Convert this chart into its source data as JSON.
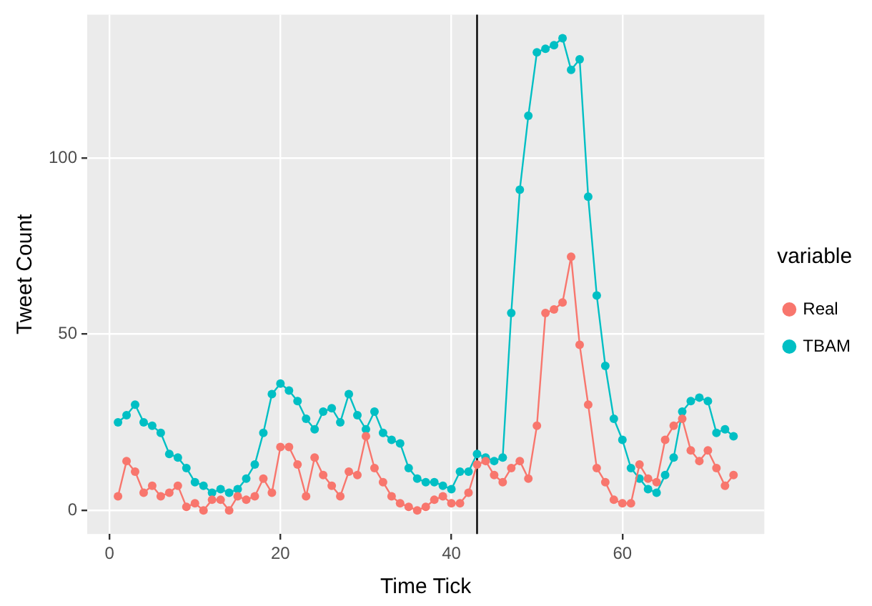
{
  "chart_data": {
    "type": "line",
    "xlabel": "Time Tick",
    "ylabel": "Tweet Count",
    "legend_title": "variable",
    "x": [
      1,
      2,
      3,
      4,
      5,
      6,
      7,
      8,
      9,
      10,
      11,
      12,
      13,
      14,
      15,
      16,
      17,
      18,
      19,
      20,
      21,
      22,
      23,
      24,
      25,
      26,
      27,
      28,
      29,
      30,
      31,
      32,
      33,
      34,
      35,
      36,
      37,
      38,
      39,
      40,
      41,
      42,
      43,
      44,
      45,
      46,
      47,
      48,
      49,
      50,
      51,
      52,
      53,
      54,
      55,
      56,
      57,
      58,
      59,
      60,
      61,
      62,
      63,
      64,
      65,
      66,
      67,
      68,
      69,
      70,
      71,
      72,
      73
    ],
    "series": [
      {
        "name": "Real",
        "color": "#f8766d",
        "values": [
          4,
          14,
          11,
          5,
          7,
          4,
          5,
          7,
          1,
          2,
          0,
          3,
          3,
          0,
          4,
          3,
          4,
          9,
          5,
          18,
          18,
          13,
          4,
          15,
          10,
          7,
          4,
          11,
          10,
          21,
          12,
          8,
          4,
          2,
          1,
          0,
          1,
          3,
          4,
          2,
          2,
          5,
          13,
          14,
          10,
          8,
          12,
          14,
          9,
          24,
          56,
          57,
          59,
          72,
          47,
          30,
          12,
          8,
          3,
          2,
          2,
          13,
          9,
          8,
          20,
          24,
          26,
          17,
          14,
          17,
          12,
          7,
          10
        ]
      },
      {
        "name": "TBAM",
        "color": "#00bfc4",
        "values": [
          25,
          27,
          30,
          25,
          24,
          22,
          16,
          15,
          12,
          8,
          7,
          5,
          6,
          5,
          6,
          9,
          13,
          22,
          33,
          36,
          34,
          31,
          26,
          23,
          28,
          29,
          25,
          33,
          27,
          23,
          28,
          22,
          20,
          19,
          12,
          9,
          8,
          8,
          7,
          6,
          11,
          11,
          16,
          15,
          14,
          15,
          56,
          91,
          112,
          130,
          131,
          132,
          134,
          125,
          128,
          89,
          61,
          41,
          26,
          20,
          12,
          9,
          6,
          5,
          10,
          15,
          28,
          31,
          32,
          31,
          22,
          23,
          21
        ]
      }
    ],
    "xlim": [
      -2.6,
      76.6
    ],
    "xticks": [
      0,
      20,
      40,
      60
    ],
    "ylim": [
      -6.7,
      140.7
    ],
    "yticks": [
      0,
      50,
      100
    ],
    "ref_lines": [
      {
        "axis": "x",
        "value": 43,
        "color": "#000000"
      }
    ],
    "grid": true,
    "legend": "right",
    "marker": "circle",
    "line_style": "solid"
  }
}
